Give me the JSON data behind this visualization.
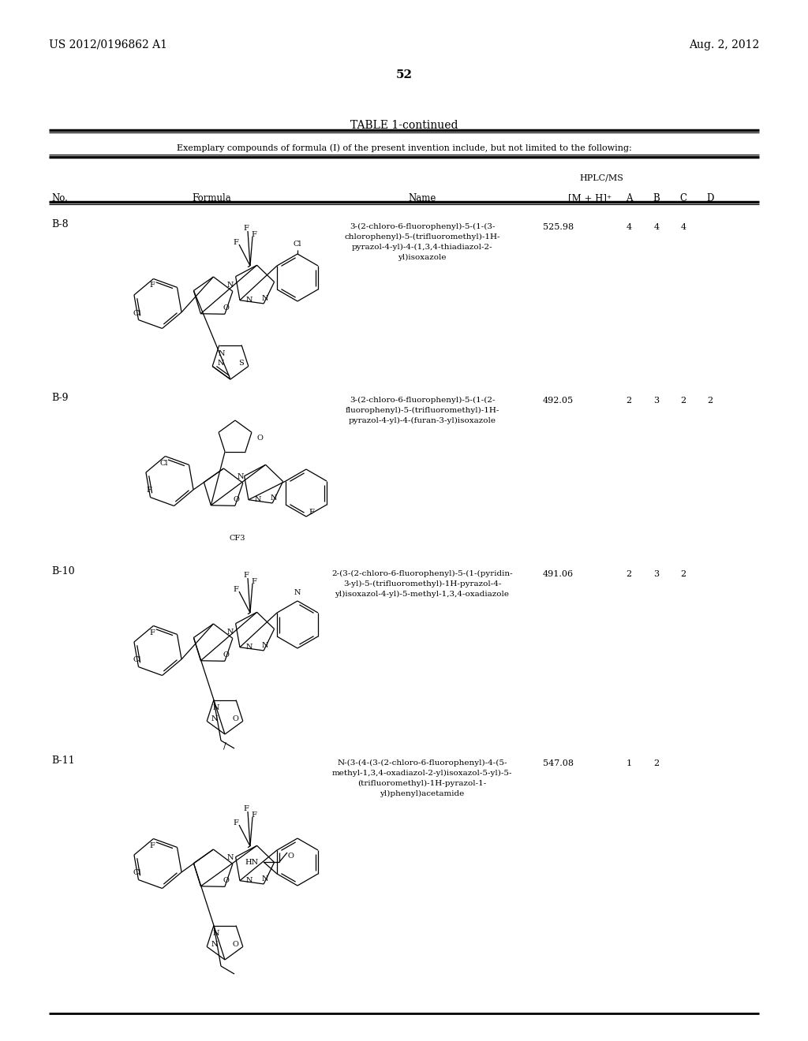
{
  "page_header_left": "US 2012/0196862 A1",
  "page_header_right": "Aug. 2, 2012",
  "page_number": "52",
  "table_title": "TABLE 1-continued",
  "table_subtitle": "Exemplary compounds of formula (I) of the present invention include, but not limited to the following:",
  "hplc_label": "HPLC/MS",
  "rows": [
    {
      "no": "B-8",
      "name_lines": [
        "3-(2-chloro-6-fluorophenyl)-5-(1-(3-",
        "chlorophenyl)-5-(trifluoromethyl)-1H-",
        "pyrazol-4-yl)-4-(1,3,4-thiadiazol-2-",
        "yl)isoxazole"
      ],
      "mh": "525.98",
      "A": "4",
      "B": "4",
      "C": "4",
      "D": ""
    },
    {
      "no": "B-9",
      "name_lines": [
        "3-(2-chloro-6-fluorophenyl)-5-(1-(2-",
        "fluorophenyl)-5-(trifluoromethyl)-1H-",
        "pyrazol-4-yl)-4-(furan-3-yl)isoxazole"
      ],
      "mh": "492.05",
      "A": "2",
      "B": "3",
      "C": "2",
      "D": "2"
    },
    {
      "no": "B-10",
      "name_lines": [
        "2-(3-(2-chloro-6-fluorophenyl)-5-(1-(pyridin-",
        "3-yl)-5-(trifluoromethyl)-1H-pyrazol-4-",
        "yl)isoxazol-4-yl)-5-methyl-1,3,4-oxadiazole"
      ],
      "mh": "491.06",
      "A": "2",
      "B": "3",
      "C": "2",
      "D": ""
    },
    {
      "no": "B-11",
      "name_lines": [
        "N-(3-(4-(3-(2-chloro-6-fluorophenyl)-4-(5-",
        "methyl-1,3,4-oxadiazol-2-yl)isoxazol-5-yl)-5-",
        "(trifluoromethyl)-1H-pyrazol-1-",
        "yl)phenyl)acetamide"
      ],
      "mh": "547.08",
      "A": "1",
      "B": "2",
      "C": "",
      "D": ""
    }
  ],
  "background_color": "#ffffff"
}
